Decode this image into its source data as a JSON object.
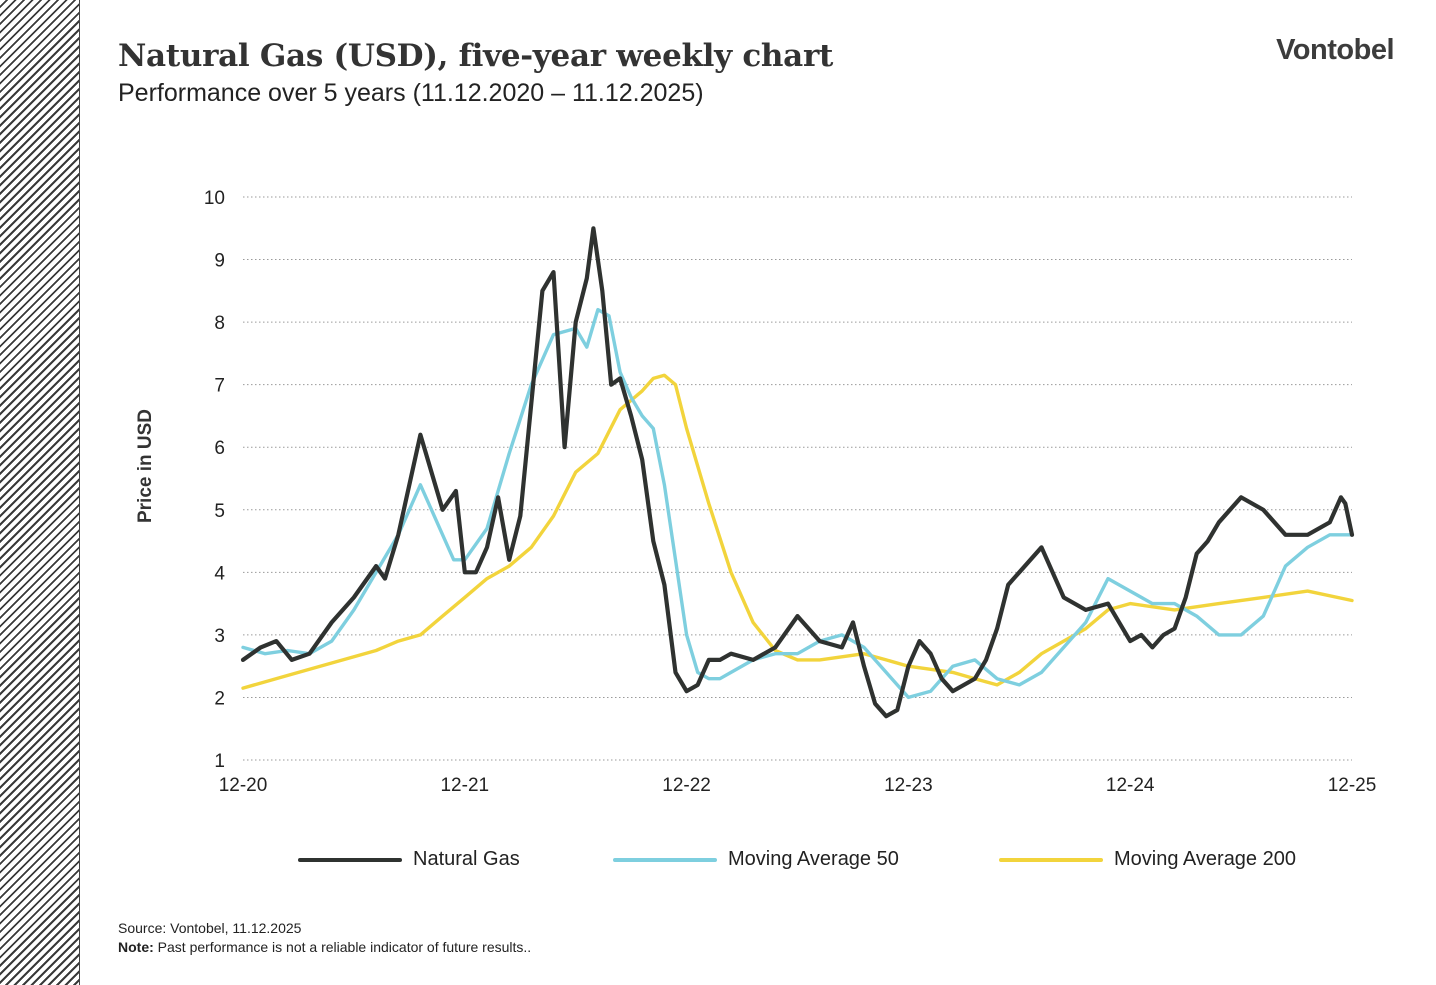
{
  "header": {
    "title": "Natural Gas (USD), five-year weekly chart",
    "subtitle": "Performance over 5 years (11.12.2020 – 11.12.2025)",
    "brand": "Vontobel"
  },
  "footer": {
    "source": "Source: Vontobel, 11.12.2025",
    "note_label": "Note:",
    "note_text": "Past performance is not a reliable indicator of future results.."
  },
  "chart_data": {
    "type": "line",
    "ylabel": "Price in USD",
    "xlabel": "",
    "ylim": [
      1,
      10
    ],
    "yticks": [
      "1",
      "2",
      "3",
      "4",
      "5",
      "6",
      "7",
      "8",
      "9",
      "10"
    ],
    "xlim": [
      0,
      5
    ],
    "xticks": [
      "12-20",
      "12-21",
      "12-22",
      "12-23",
      "12-24",
      "12-25"
    ],
    "grid": "horizontal dotted",
    "legend_position": "bottom",
    "x_unit": "years since Dec 2020",
    "series": [
      {
        "name": "Natural Gas",
        "color": "#2f3230",
        "x": [
          0,
          0.08,
          0.15,
          0.22,
          0.3,
          0.4,
          0.5,
          0.6,
          0.64,
          0.7,
          0.8,
          0.9,
          0.96,
          1.0,
          1.05,
          1.1,
          1.15,
          1.2,
          1.25,
          1.3,
          1.35,
          1.4,
          1.45,
          1.5,
          1.55,
          1.58,
          1.62,
          1.66,
          1.7,
          1.75,
          1.8,
          1.85,
          1.9,
          1.95,
          2.0,
          2.05,
          2.1,
          2.15,
          2.2,
          2.3,
          2.4,
          2.5,
          2.6,
          2.7,
          2.75,
          2.8,
          2.85,
          2.9,
          2.95,
          3.0,
          3.05,
          3.1,
          3.15,
          3.2,
          3.3,
          3.35,
          3.4,
          3.45,
          3.5,
          3.6,
          3.7,
          3.8,
          3.9,
          4.0,
          4.05,
          4.1,
          4.15,
          4.2,
          4.25,
          4.3,
          4.35,
          4.4,
          4.45,
          4.5,
          4.6,
          4.7,
          4.8,
          4.9,
          4.95,
          4.97,
          5.0
        ],
        "values": [
          2.6,
          2.8,
          2.9,
          2.6,
          2.7,
          3.2,
          3.6,
          4.1,
          3.9,
          4.6,
          6.2,
          5.0,
          5.3,
          4.0,
          4.0,
          4.4,
          5.2,
          4.2,
          4.9,
          6.7,
          8.5,
          8.8,
          6.0,
          8.0,
          8.7,
          9.5,
          8.5,
          7.0,
          7.1,
          6.5,
          5.8,
          4.5,
          3.8,
          2.4,
          2.1,
          2.2,
          2.6,
          2.6,
          2.7,
          2.6,
          2.8,
          3.3,
          2.9,
          2.8,
          3.2,
          2.5,
          1.9,
          1.7,
          1.8,
          2.5,
          2.9,
          2.7,
          2.3,
          2.1,
          2.3,
          2.6,
          3.1,
          3.8,
          4.0,
          4.4,
          3.6,
          3.4,
          3.5,
          2.9,
          3.0,
          2.8,
          3.0,
          3.1,
          3.6,
          4.3,
          4.5,
          4.8,
          5.0,
          5.2,
          5.0,
          4.6,
          4.6,
          4.8,
          5.2,
          5.1,
          4.6
        ]
      },
      {
        "name": "Moving Average 50",
        "color": "#7ecfdf",
        "x": [
          0,
          0.1,
          0.2,
          0.3,
          0.4,
          0.5,
          0.6,
          0.7,
          0.8,
          0.9,
          0.95,
          1.0,
          1.1,
          1.2,
          1.3,
          1.4,
          1.5,
          1.55,
          1.6,
          1.65,
          1.7,
          1.75,
          1.8,
          1.85,
          1.9,
          1.95,
          2.0,
          2.05,
          2.1,
          2.15,
          2.2,
          2.3,
          2.4,
          2.5,
          2.6,
          2.7,
          2.8,
          2.9,
          3.0,
          3.1,
          3.2,
          3.3,
          3.4,
          3.5,
          3.6,
          3.7,
          3.8,
          3.9,
          4.0,
          4.1,
          4.2,
          4.3,
          4.4,
          4.5,
          4.6,
          4.7,
          4.8,
          4.9,
          5.0
        ],
        "values": [
          2.8,
          2.7,
          2.75,
          2.7,
          2.9,
          3.4,
          4.0,
          4.6,
          5.4,
          4.6,
          4.2,
          4.2,
          4.7,
          5.9,
          7.0,
          7.8,
          7.9,
          7.6,
          8.2,
          8.1,
          7.2,
          6.8,
          6.5,
          6.3,
          5.4,
          4.2,
          3.0,
          2.4,
          2.3,
          2.3,
          2.4,
          2.6,
          2.7,
          2.7,
          2.9,
          3.0,
          2.8,
          2.4,
          2.0,
          2.1,
          2.5,
          2.6,
          2.3,
          2.2,
          2.4,
          2.8,
          3.2,
          3.9,
          3.7,
          3.5,
          3.5,
          3.3,
          3.0,
          3.0,
          3.3,
          4.1,
          4.4,
          4.6,
          4.6
        ]
      },
      {
        "name": "Moving Average 200",
        "color": "#f2d43c",
        "x": [
          0,
          0.2,
          0.4,
          0.6,
          0.7,
          0.8,
          0.9,
          1.0,
          1.1,
          1.2,
          1.3,
          1.4,
          1.5,
          1.6,
          1.7,
          1.8,
          1.85,
          1.9,
          1.95,
          2.0,
          2.1,
          2.2,
          2.3,
          2.4,
          2.5,
          2.6,
          2.7,
          2.8,
          2.9,
          3.0,
          3.1,
          3.2,
          3.3,
          3.4,
          3.5,
          3.6,
          3.7,
          3.8,
          3.9,
          4.0,
          4.2,
          4.4,
          4.6,
          4.8,
          5.0
        ],
        "values": [
          2.15,
          2.35,
          2.55,
          2.75,
          2.9,
          3.0,
          3.3,
          3.6,
          3.9,
          4.1,
          4.4,
          4.9,
          5.6,
          5.9,
          6.6,
          6.9,
          7.1,
          7.15,
          7.0,
          6.3,
          5.1,
          4.0,
          3.2,
          2.75,
          2.6,
          2.6,
          2.65,
          2.7,
          2.6,
          2.5,
          2.45,
          2.4,
          2.3,
          2.2,
          2.4,
          2.7,
          2.9,
          3.1,
          3.4,
          3.5,
          3.4,
          3.5,
          3.6,
          3.7,
          3.55
        ]
      }
    ]
  }
}
